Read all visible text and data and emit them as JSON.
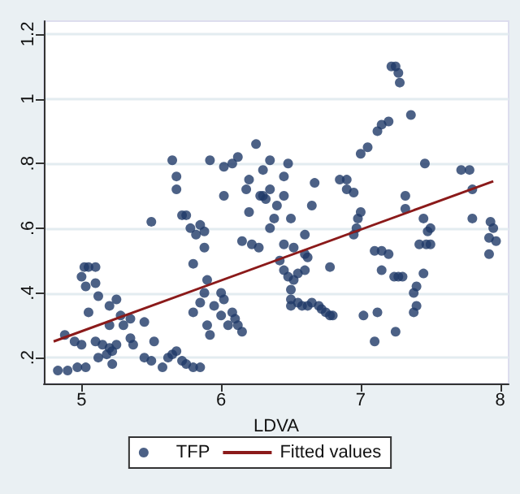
{
  "chart_data": {
    "type": "scatter",
    "xlabel": "LDVA",
    "xlim": [
      4.73,
      8.06
    ],
    "xticks": [
      5,
      6,
      7,
      8
    ],
    "ylim": [
      0.12,
      1.24
    ],
    "yticks": [
      {
        "value": 0.2,
        "label": ".2"
      },
      {
        "value": 0.4,
        "label": ".4"
      },
      {
        "value": 0.6,
        "label": ".6"
      },
      {
        "value": 0.8,
        "label": ".8"
      },
      1,
      {
        "value": 1.2,
        "label": "1.2"
      }
    ],
    "grid": "y",
    "legend": "bottom",
    "series": [
      {
        "name": "TFP",
        "marker": "circle",
        "color": "#1f3a68",
        "x": [
          4.83,
          4.9,
          4.97,
          5.03,
          4.88,
          4.95,
          5.0,
          5.0,
          5.02,
          5.05,
          5.1,
          5.03,
          5.1,
          5.05,
          5.12,
          5.1,
          5.15,
          5.2,
          5.25,
          5.12,
          5.18,
          5.22,
          5.2,
          5.2,
          5.25,
          5.28,
          5.3,
          5.35,
          5.22,
          5.35,
          5.37,
          5.45,
          5.45,
          5.5,
          5.52,
          5.58,
          5.5,
          5.62,
          5.65,
          5.68,
          5.72,
          5.75,
          5.8,
          5.85,
          5.65,
          5.68,
          5.68,
          5.72,
          5.75,
          5.78,
          5.8,
          5.82,
          5.85,
          5.88,
          5.88,
          5.8,
          5.85,
          5.88,
          5.9,
          5.9,
          5.92,
          5.95,
          5.92,
          6.0,
          6.02,
          6.0,
          6.05,
          6.1,
          6.12,
          6.15,
          6.08,
          6.02,
          6.02,
          6.08,
          6.12,
          6.15,
          6.18,
          6.2,
          6.2,
          6.22,
          6.25,
          6.27,
          6.3,
          6.28,
          6.3,
          6.32,
          6.35,
          6.35,
          6.38,
          6.35,
          6.4,
          6.45,
          6.42,
          6.45,
          6.48,
          6.5,
          6.52,
          6.45,
          6.48,
          6.5,
          6.52,
          6.6,
          6.6,
          6.62,
          6.65,
          6.67,
          6.45,
          6.5,
          6.5,
          6.55,
          6.58,
          6.62,
          6.65,
          6.7,
          6.72,
          6.75,
          6.78,
          6.8,
          6.55,
          6.6,
          6.78,
          6.85,
          6.9,
          6.9,
          6.95,
          6.95,
          6.97,
          6.98,
          7.0,
          7.0,
          7.05,
          7.02,
          7.1,
          7.1,
          7.12,
          7.15,
          7.15,
          7.15,
          7.2,
          7.2,
          7.12,
          7.22,
          7.25,
          7.27,
          7.28,
          7.24,
          7.27,
          7.3,
          7.25,
          7.32,
          7.32,
          7.36,
          7.38,
          7.38,
          7.4,
          7.4,
          7.42,
          7.45,
          7.45,
          7.46,
          7.47,
          7.5,
          7.5,
          7.48,
          7.72,
          7.78,
          7.8,
          7.8,
          7.92,
          7.92,
          7.93,
          7.95,
          7.97
        ],
        "values": [
          0.16,
          0.16,
          0.17,
          0.17,
          0.27,
          0.25,
          0.24,
          0.45,
          0.48,
          0.48,
          0.48,
          0.42,
          0.43,
          0.34,
          0.39,
          0.25,
          0.24,
          0.23,
          0.24,
          0.2,
          0.21,
          0.22,
          0.3,
          0.36,
          0.38,
          0.33,
          0.3,
          0.32,
          0.18,
          0.26,
          0.24,
          0.31,
          0.2,
          0.19,
          0.25,
          0.17,
          0.62,
          0.2,
          0.21,
          0.22,
          0.19,
          0.18,
          0.17,
          0.17,
          0.81,
          0.76,
          0.72,
          0.64,
          0.64,
          0.6,
          0.49,
          0.58,
          0.61,
          0.54,
          0.59,
          0.34,
          0.37,
          0.4,
          0.44,
          0.3,
          0.27,
          0.36,
          0.81,
          0.4,
          0.38,
          0.33,
          0.3,
          0.32,
          0.3,
          0.28,
          0.34,
          0.7,
          0.79,
          0.8,
          0.82,
          0.56,
          0.72,
          0.75,
          0.65,
          0.55,
          0.86,
          0.54,
          0.7,
          0.7,
          0.78,
          0.69,
          0.81,
          0.6,
          0.63,
          0.72,
          0.67,
          0.7,
          0.5,
          0.47,
          0.45,
          0.41,
          0.44,
          0.76,
          0.8,
          0.63,
          0.54,
          0.52,
          0.58,
          0.51,
          0.67,
          0.74,
          0.55,
          0.38,
          0.36,
          0.37,
          0.36,
          0.36,
          0.37,
          0.36,
          0.35,
          0.34,
          0.33,
          0.33,
          0.46,
          0.47,
          0.48,
          0.75,
          0.75,
          0.72,
          0.71,
          0.58,
          0.6,
          0.63,
          0.65,
          0.83,
          0.85,
          0.33,
          0.25,
          0.53,
          0.9,
          0.92,
          0.47,
          0.53,
          0.52,
          0.93,
          0.34,
          1.1,
          1.1,
          1.08,
          1.05,
          0.45,
          0.45,
          0.45,
          0.28,
          0.66,
          0.7,
          0.95,
          0.4,
          0.34,
          0.36,
          0.42,
          0.55,
          0.63,
          0.46,
          0.8,
          0.55,
          0.55,
          0.6,
          0.59,
          0.78,
          0.78,
          0.63,
          0.72,
          0.57,
          0.52,
          0.62,
          0.6,
          0.56
        ]
      },
      {
        "name": "Fitted values",
        "type": "line",
        "marker": "none",
        "line_style": "solid",
        "color": "#8b1a1a",
        "x": [
          4.8,
          7.95
        ],
        "values": [
          0.25,
          0.745
        ]
      }
    ]
  }
}
